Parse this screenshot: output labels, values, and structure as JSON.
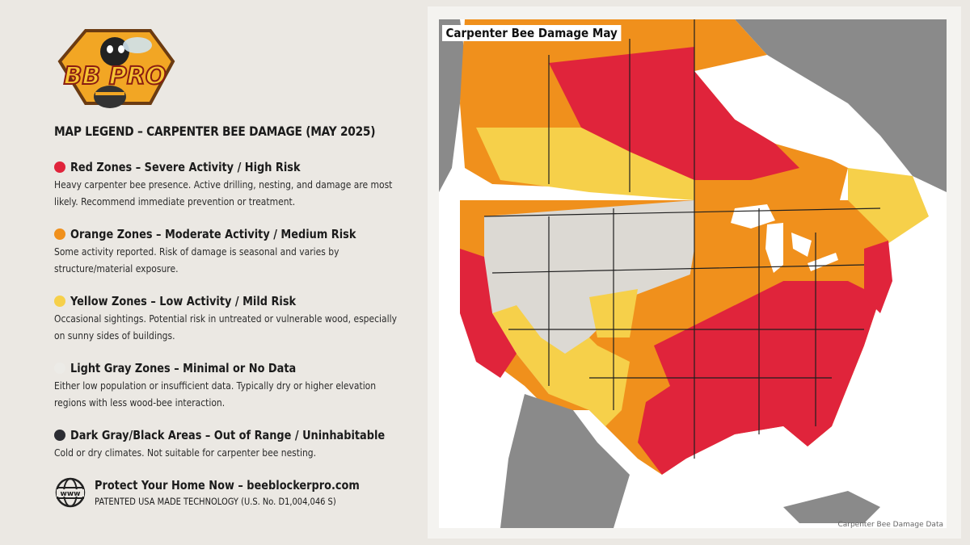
{
  "logo": {
    "text": "BB PRO",
    "icon": "bee-mascot-logo"
  },
  "legend": {
    "title": "MAP LEGEND – CARPENTER BEE DAMAGE (MAY 2025)",
    "items": [
      {
        "color": "#e0243b",
        "heading": "Red Zones – Severe Activity / High Risk",
        "description": "Heavy carpenter bee presence. Active drilling, nesting, and damage are most likely. Recommend immediate prevention or treatment."
      },
      {
        "color": "#f0901c",
        "heading": "Orange Zones – Moderate Activity / Medium Risk",
        "description": "Some activity reported. Risk of damage is seasonal and varies by structure/material exposure."
      },
      {
        "color": "#f6d04a",
        "heading": "Yellow Zones – Low Activity / Mild Risk",
        "description": "Occasional sightings. Potential risk in untreated or vulnerable wood, especially on sunny sides of buildings."
      },
      {
        "color": "#ecebe7",
        "heading": "Light Gray Zones – Minimal or No Data",
        "description": "Either low population or insufficient data. Typically dry or higher elevation regions with less wood-bee interaction."
      },
      {
        "color": "#2c2d33",
        "heading": "Dark Gray/Black Areas – Out of Range / Uninhabitable",
        "description": "Cold or dry climates. Not suitable for carpenter bee nesting."
      }
    ]
  },
  "footer": {
    "icon": "globe-www-icon",
    "globe_text": "www",
    "cta": "Protect Your Home Now – beeblockerpro.com",
    "patent": "PATENTED USA MADE TECHNOLOGY (U.S. No. D1,004,046 S)"
  },
  "map": {
    "title": "Carpenter Bee Damage May",
    "credit": "Carpenter Bee Damage Data",
    "colors": {
      "red": "#e0243b",
      "orange": "#f0901c",
      "yellow": "#f6d04a",
      "gray": "#dcd9d3",
      "dark": "#8a8a8a",
      "water": "#ffffff"
    }
  }
}
